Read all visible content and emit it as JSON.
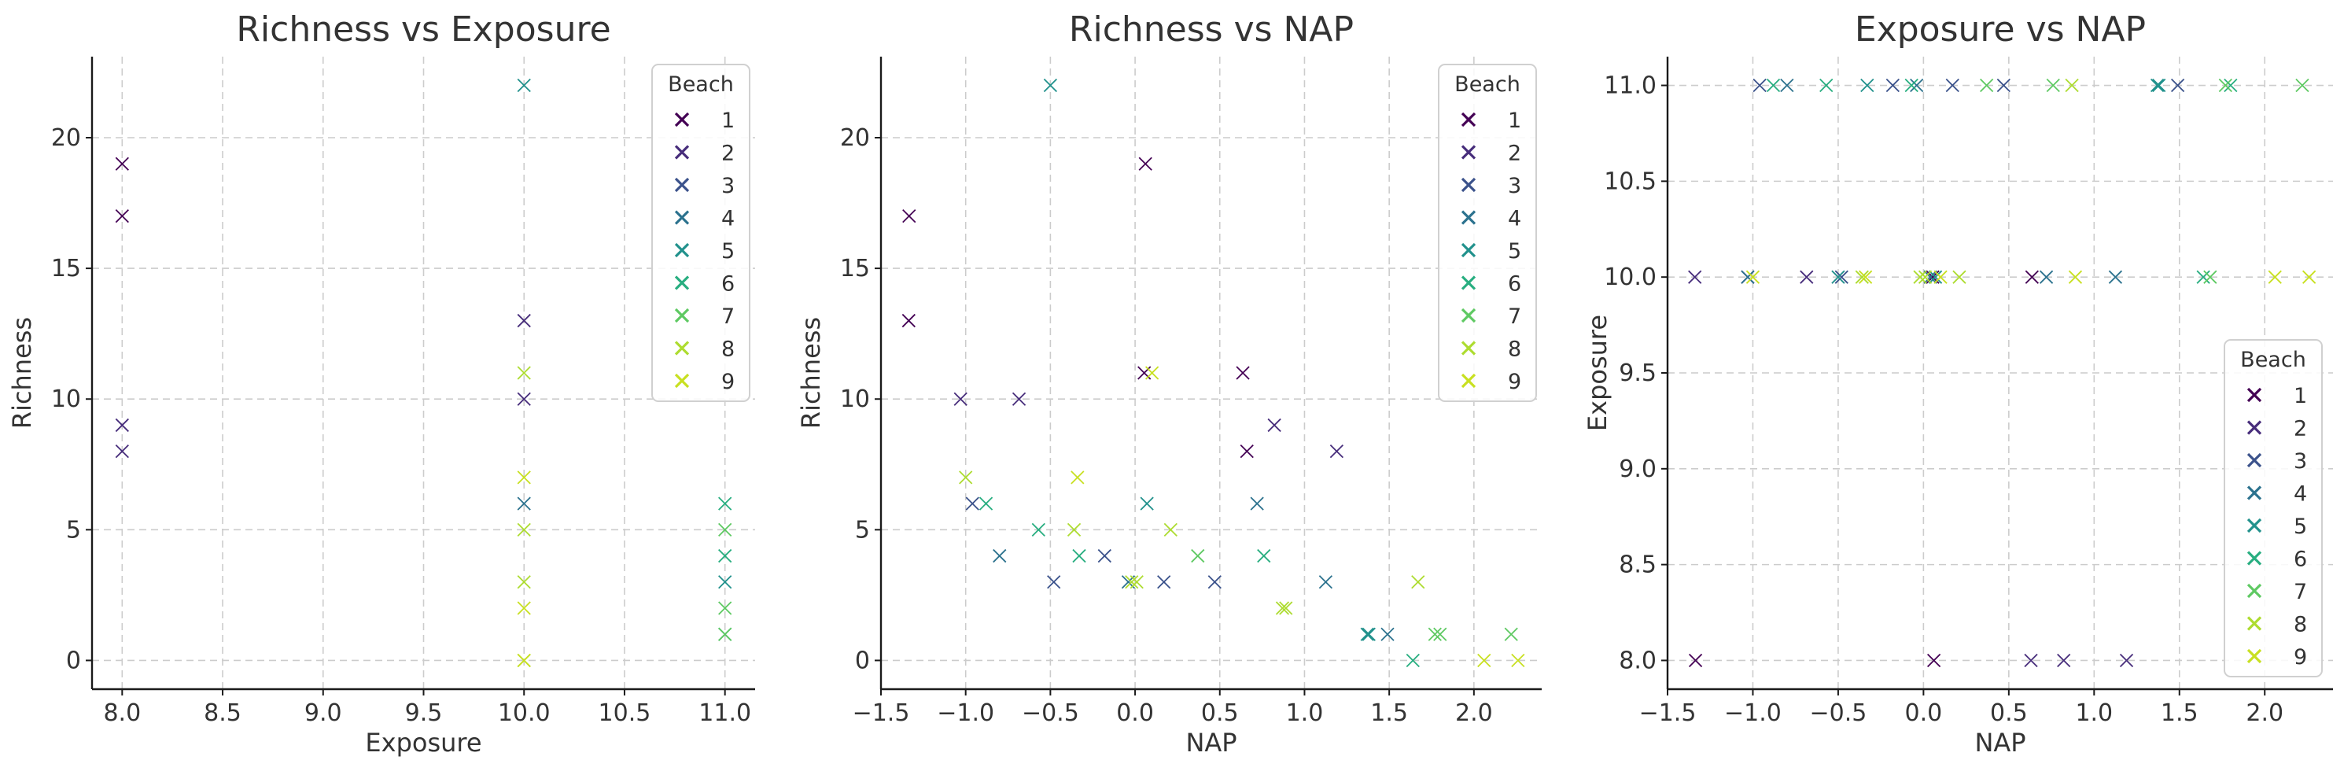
{
  "colors": {
    "1": "#440154",
    "2": "#472d7b",
    "3": "#3b528b",
    "4": "#2c728e",
    "5": "#21918c",
    "6": "#28ae80",
    "7": "#5ec962",
    "8": "#addc30",
    "9": "#c8e020"
  },
  "chart_data": [
    {
      "type": "scatter",
      "title": "Richness vs Exposure",
      "xlabel": "Exposure",
      "ylabel": "Richness",
      "xlim": [
        7.85,
        11.15
      ],
      "ylim": [
        -1.1,
        23.1
      ],
      "xticks": [
        8.0,
        8.5,
        9.0,
        9.5,
        10.0,
        10.5,
        11.0
      ],
      "xtick_labels": [
        "8.0",
        "8.5",
        "9.0",
        "9.5",
        "10.0",
        "10.5",
        "11.0"
      ],
      "yticks": [
        0,
        5,
        10,
        15,
        20
      ],
      "ytick_labels": [
        "0",
        "5",
        "10",
        "15",
        "20"
      ],
      "grid": true,
      "marker": "x",
      "legend": {
        "title": "Beach",
        "placement": "top-right",
        "entries": [
          "1",
          "2",
          "3",
          "4",
          "5",
          "6",
          "7",
          "8",
          "9"
        ]
      },
      "series": [
        {
          "name": "1",
          "points": [
            [
              8,
              19
            ],
            [
              8,
              17
            ]
          ]
        },
        {
          "name": "2",
          "points": [
            [
              8,
              9
            ],
            [
              8,
              8
            ],
            [
              10,
              13
            ],
            [
              10,
              10
            ]
          ]
        },
        {
          "name": "3",
          "points": []
        },
        {
          "name": "4",
          "points": [
            [
              10,
              6
            ]
          ]
        },
        {
          "name": "5",
          "points": [
            [
              10,
              22
            ],
            [
              11,
              3
            ]
          ]
        },
        {
          "name": "6",
          "points": [
            [
              11,
              6
            ],
            [
              11,
              4
            ],
            [
              11,
              1
            ]
          ]
        },
        {
          "name": "7",
          "points": [
            [
              11,
              5
            ],
            [
              11,
              2
            ],
            [
              11,
              1
            ]
          ]
        },
        {
          "name": "8",
          "points": [
            [
              10,
              11
            ],
            [
              10,
              5
            ],
            [
              10,
              3
            ],
            [
              10,
              0
            ]
          ]
        },
        {
          "name": "9",
          "points": [
            [
              10,
              7
            ],
            [
              10,
              2
            ],
            [
              10,
              0
            ]
          ]
        }
      ]
    },
    {
      "type": "scatter",
      "title": "Richness vs NAP",
      "xlabel": "NAP",
      "ylabel": "Richness",
      "xlim": [
        -1.5,
        2.4
      ],
      "ylim": [
        -1.1,
        23.1
      ],
      "xticks": [
        -1.5,
        -1.0,
        -0.5,
        0.0,
        0.5,
        1.0,
        1.5,
        2.0
      ],
      "xtick_labels": [
        "−1.5",
        "−1.0",
        "−0.5",
        "0.0",
        "0.5",
        "1.0",
        "1.5",
        "2.0"
      ],
      "yticks": [
        0,
        5,
        10,
        15,
        20
      ],
      "ytick_labels": [
        "0",
        "5",
        "10",
        "15",
        "20"
      ],
      "grid": true,
      "marker": "x",
      "legend": {
        "title": "Beach",
        "placement": "top-right",
        "entries": [
          "1",
          "2",
          "3",
          "4",
          "5",
          "6",
          "7",
          "8",
          "9"
        ]
      },
      "series": [
        {
          "name": "1",
          "points": [
            [
              -1.336,
              13
            ],
            [
              -1.334,
              17
            ],
            [
              0.061,
              19
            ],
            [
              0.054,
              11
            ],
            [
              0.636,
              11
            ],
            [
              0.66,
              8
            ]
          ]
        },
        {
          "name": "2",
          "points": [
            [
              -1.03,
              10
            ],
            [
              -0.685,
              10
            ],
            [
              0.822,
              9
            ],
            [
              1.19,
              8
            ]
          ]
        },
        {
          "name": "3",
          "points": [
            [
              -0.96,
              6
            ],
            [
              -0.48,
              3
            ],
            [
              -0.18,
              4
            ],
            [
              0.17,
              3
            ],
            [
              0.47,
              3
            ]
          ]
        },
        {
          "name": "4",
          "points": [
            [
              -0.8,
              4
            ],
            [
              -0.04,
              3
            ],
            [
              0.72,
              6
            ],
            [
              1.125,
              3
            ],
            [
              1.49,
              1
            ]
          ]
        },
        {
          "name": "5",
          "points": [
            [
              -0.5,
              22
            ],
            [
              0.07,
              6
            ],
            [
              1.37,
              1
            ],
            [
              1.38,
              1
            ]
          ]
        },
        {
          "name": "6",
          "points": [
            [
              -0.88,
              6
            ],
            [
              -0.57,
              5
            ],
            [
              -0.33,
              4
            ],
            [
              0.76,
              4
            ],
            [
              1.64,
              0
            ]
          ]
        },
        {
          "name": "7",
          "points": [
            [
              0.37,
              4
            ],
            [
              1.77,
              1
            ],
            [
              1.8,
              1
            ],
            [
              2.22,
              1
            ]
          ]
        },
        {
          "name": "8",
          "points": [
            [
              -1.0,
              7
            ],
            [
              -0.36,
              5
            ],
            [
              -0.02,
              3
            ],
            [
              0.01,
              3
            ],
            [
              0.21,
              5
            ],
            [
              0.87,
              2
            ],
            [
              0.89,
              2
            ],
            [
              1.67,
              3
            ]
          ]
        },
        {
          "name": "9",
          "points": [
            [
              -0.34,
              7
            ],
            [
              0.1,
              11
            ],
            [
              2.06,
              0
            ],
            [
              2.26,
              0
            ]
          ]
        }
      ]
    },
    {
      "type": "scatter",
      "title": "Exposure vs NAP",
      "xlabel": "NAP",
      "ylabel": "Exposure",
      "xlim": [
        -1.5,
        2.4
      ],
      "ylim": [
        7.85,
        11.15
      ],
      "xticks": [
        -1.5,
        -1.0,
        -0.5,
        0.0,
        0.5,
        1.0,
        1.5,
        2.0
      ],
      "xtick_labels": [
        "−1.5",
        "−1.0",
        "−0.5",
        "0.0",
        "0.5",
        "1.0",
        "1.5",
        "2.0"
      ],
      "yticks": [
        8.0,
        8.5,
        9.0,
        9.5,
        10.0,
        10.5,
        11.0
      ],
      "ytick_labels": [
        "8.0",
        "8.5",
        "9.0",
        "9.5",
        "10.0",
        "10.5",
        "11.0"
      ],
      "grid": true,
      "marker": "x",
      "legend": {
        "title": "Beach",
        "placement": "bottom-right",
        "entries": [
          "1",
          "2",
          "3",
          "4",
          "5",
          "6",
          "7",
          "8",
          "9"
        ]
      },
      "series": [
        {
          "name": "1",
          "points": [
            [
              -1.336,
              8
            ],
            [
              0.061,
              8
            ],
            [
              0.054,
              10
            ],
            [
              0.636,
              10
            ]
          ]
        },
        {
          "name": "2",
          "points": [
            [
              -1.03,
              10
            ],
            [
              -0.685,
              10
            ],
            [
              0.822,
              8
            ],
            [
              1.19,
              8
            ],
            [
              0.63,
              8
            ],
            [
              -1.34,
              10
            ]
          ]
        },
        {
          "name": "3",
          "points": [
            [
              -0.96,
              11
            ],
            [
              -0.18,
              11
            ],
            [
              0.17,
              11
            ],
            [
              0.47,
              11
            ],
            [
              1.49,
              11
            ],
            [
              -0.48,
              10
            ]
          ]
        },
        {
          "name": "4",
          "points": [
            [
              -0.8,
              11
            ],
            [
              -0.04,
              11
            ],
            [
              0.72,
              10
            ],
            [
              1.125,
              10
            ],
            [
              -1.03,
              10
            ],
            [
              0.04,
              10
            ]
          ]
        },
        {
          "name": "5",
          "points": [
            [
              -0.5,
              10
            ],
            [
              0.07,
              10
            ],
            [
              1.37,
              11
            ],
            [
              1.38,
              11
            ],
            [
              -0.33,
              11
            ]
          ]
        },
        {
          "name": "6",
          "points": [
            [
              -0.88,
              11
            ],
            [
              -0.57,
              11
            ],
            [
              1.64,
              10
            ],
            [
              1.8,
              11
            ],
            [
              -0.07,
              11
            ]
          ]
        },
        {
          "name": "7",
          "points": [
            [
              0.37,
              11
            ],
            [
              1.77,
              11
            ],
            [
              2.22,
              11
            ],
            [
              0.76,
              11
            ],
            [
              1.68,
              10
            ]
          ]
        },
        {
          "name": "8",
          "points": [
            [
              -0.36,
              10
            ],
            [
              -0.02,
              10
            ],
            [
              0.01,
              10
            ],
            [
              0.21,
              10
            ],
            [
              0.87,
              11
            ]
          ]
        },
        {
          "name": "9",
          "points": [
            [
              -1.0,
              10
            ],
            [
              -0.34,
              10
            ],
            [
              0.1,
              10
            ],
            [
              0.89,
              10
            ],
            [
              2.06,
              10
            ],
            [
              2.26,
              10
            ]
          ]
        }
      ]
    }
  ]
}
